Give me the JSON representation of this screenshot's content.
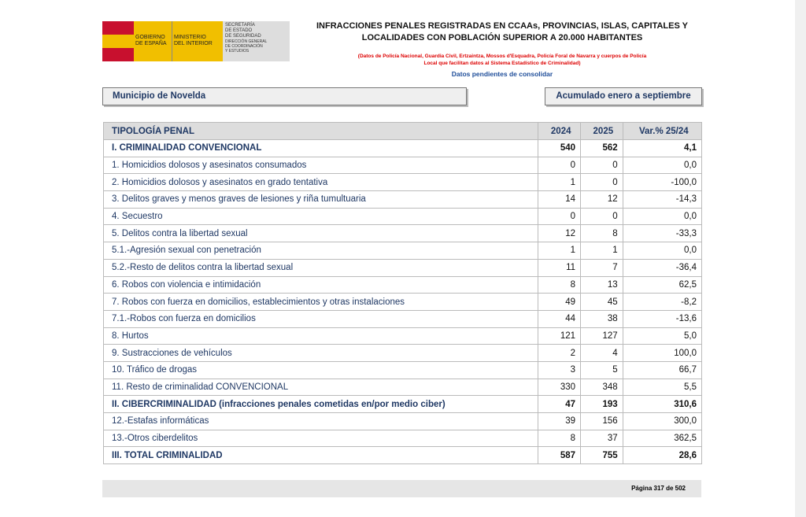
{
  "header": {
    "logo": {
      "gov": [
        "GOBIERNO",
        "DE ESPAÑA"
      ],
      "ministry": [
        "MINISTERIO",
        "DEL INTERIOR"
      ],
      "secretariat": [
        "SECRETARÍA",
        "DE ESTADO",
        "DE SEGURIDAD"
      ],
      "directorate": [
        "DIRECCIÓN GENERAL",
        "DE COORDINACIÓN",
        "Y ESTUDIOS"
      ]
    },
    "title": [
      "INFRACCIONES PENALES REGISTRADAS EN CCAAs, PROVINCIAS, ISLAS, CAPITALES Y",
      "LOCALIDADES CON POBLACIÓN SUPERIOR A 20.000 HABITANTES"
    ],
    "subtitle": [
      "(Datos de Policía Nacional, Guardia Civil, Ertzaintza, Mossos d'Esquadra, Policía Foral de Navarra y cuerpos de Policía",
      "Local que facilitan datos al Sistema Estadístico de Criminalidad)"
    ],
    "note": "Datos pendientes de consolidar"
  },
  "filters": {
    "municipality": "Municipio de Novelda",
    "period": "Acumulado enero a septiembre"
  },
  "table": {
    "columns": [
      "TIPOLOGÍA PENAL",
      "2024",
      "2025",
      "Var.% 25/24"
    ],
    "rows": [
      {
        "cells": [
          "I. CRIMINALIDAD CONVENCIONAL",
          "540",
          "562",
          "4,1"
        ],
        "bold": true
      },
      {
        "cells": [
          "1. Homicidios dolosos y asesinatos consumados",
          "0",
          "0",
          "0,0"
        ],
        "bold": false
      },
      {
        "cells": [
          "2. Homicidios dolosos y asesinatos en grado tentativa",
          "1",
          "0",
          "-100,0"
        ],
        "bold": false
      },
      {
        "cells": [
          "3. Delitos graves y menos graves de lesiones y riña tumultuaria",
          "14",
          "12",
          "-14,3"
        ],
        "bold": false
      },
      {
        "cells": [
          "4. Secuestro",
          "0",
          "0",
          "0,0"
        ],
        "bold": false
      },
      {
        "cells": [
          "5. Delitos contra la libertad sexual",
          "12",
          "8",
          "-33,3"
        ],
        "bold": false
      },
      {
        "cells": [
          "5.1.-Agresión sexual con penetración",
          "1",
          "1",
          "0,0"
        ],
        "bold": false
      },
      {
        "cells": [
          "5.2.-Resto de delitos contra la libertad sexual",
          "11",
          "7",
          "-36,4"
        ],
        "bold": false
      },
      {
        "cells": [
          "6. Robos con violencia e intimidación",
          "8",
          "13",
          "62,5"
        ],
        "bold": false
      },
      {
        "cells": [
          "7. Robos con fuerza en domicilios, establecimientos y otras instalaciones",
          "49",
          "45",
          "-8,2"
        ],
        "bold": false
      },
      {
        "cells": [
          "7.1.-Robos con fuerza en domicilios",
          "44",
          "38",
          "-13,6"
        ],
        "bold": false
      },
      {
        "cells": [
          "8. Hurtos",
          "121",
          "127",
          "5,0"
        ],
        "bold": false
      },
      {
        "cells": [
          "9. Sustracciones de vehículos",
          "2",
          "4",
          "100,0"
        ],
        "bold": false
      },
      {
        "cells": [
          "10. Tráfico de drogas",
          "3",
          "5",
          "66,7"
        ],
        "bold": false
      },
      {
        "cells": [
          "11. Resto de criminalidad CONVENCIONAL",
          "330",
          "348",
          "5,5"
        ],
        "bold": false
      },
      {
        "cells": [
          "II. CIBERCRIMINALIDAD (infracciones penales cometidas en/por medio ciber)",
          "47",
          "193",
          "310,6"
        ],
        "bold": true
      },
      {
        "cells": [
          "12.-Estafas informáticas",
          "39",
          "156",
          "300,0"
        ],
        "bold": false
      },
      {
        "cells": [
          "13.-Otros ciberdelitos",
          "8",
          "37",
          "362,5"
        ],
        "bold": false
      },
      {
        "cells": [
          "III. TOTAL CRIMINALIDAD",
          "587",
          "755",
          "28,6"
        ],
        "bold": true
      }
    ]
  },
  "footer": {
    "page": "Página 317 de 502"
  }
}
